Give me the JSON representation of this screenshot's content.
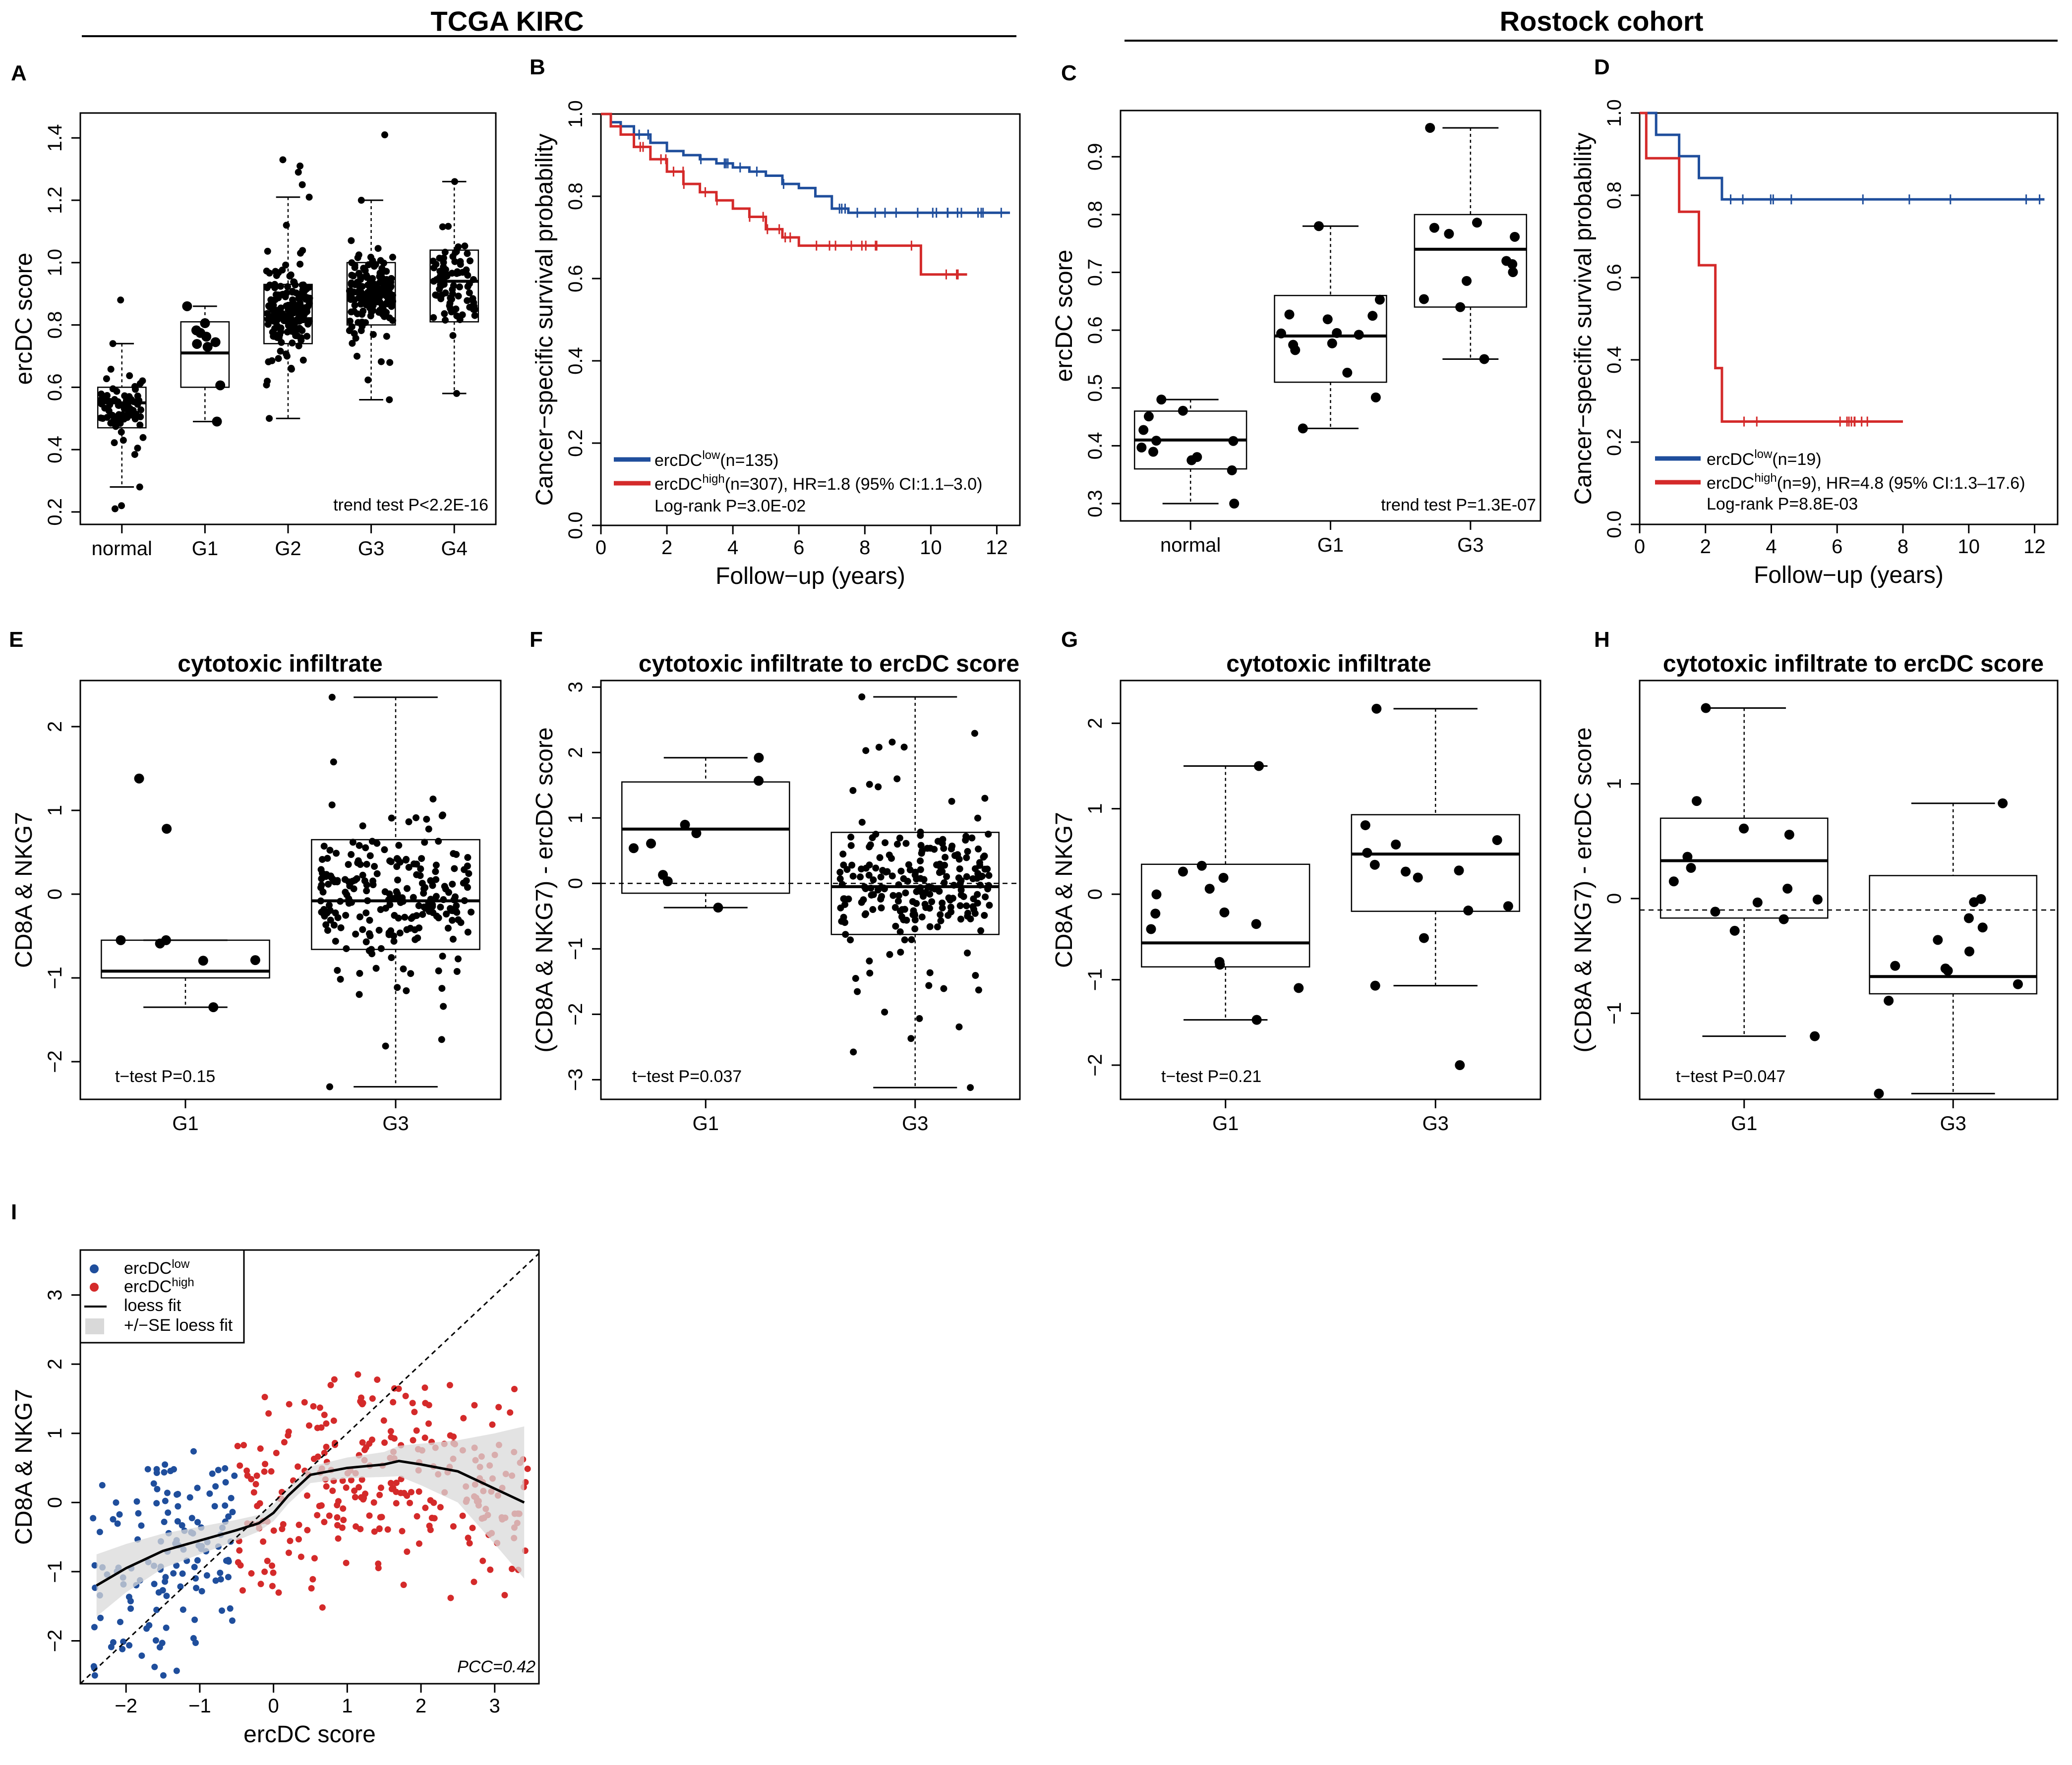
{
  "header": {
    "left_cohort": "TCGA  KIRC",
    "right_cohort": "Rostock cohort"
  },
  "colors": {
    "low": "#1f4e9c",
    "high": "#d42a2a",
    "band": "#d9d9d9"
  },
  "panels": {
    "A": {
      "label": "A",
      "annotation": "trend test P<2.2E-16"
    },
    "B": {
      "label": "B",
      "legend_low": "ercDC",
      "legend_low_sup": "low",
      "legend_low_n": "(n=135)",
      "legend_high": "ercDC",
      "legend_high_sup": "high",
      "legend_high_n": "(n=307), HR=1.8 (95% CI:1.1–3.0)",
      "logrank": "Log-rank  P=3.0E-02"
    },
    "C": {
      "label": "C",
      "annotation": "trend test P=1.3E-07"
    },
    "D": {
      "label": "D",
      "legend_low": "ercDC",
      "legend_low_sup": "low",
      "legend_low_n": "(n=19)",
      "legend_high": "ercDC",
      "legend_high_sup": "high",
      "legend_high_n": "(n=9), HR=4.8 (95% CI:1.3–17.6)",
      "logrank": "Log-rank P=8.8E-03"
    },
    "E": {
      "label": "E",
      "title": "cytotoxic infiltrate",
      "annotation": "t−test P=0.15"
    },
    "F": {
      "label": "F",
      "title": "cytotoxic infiltrate to ercDC score",
      "annotation": "t−test P=0.037"
    },
    "G": {
      "label": "G",
      "title": "cytotoxic infiltrate",
      "annotation": "t−test P=0.21"
    },
    "H": {
      "label": "H",
      "title": "cytotoxic infiltrate to ercDC score",
      "annotation": "t−test P=0.047"
    },
    "I": {
      "label": "I",
      "legend_low": "ercDC",
      "legend_low_sup": "low",
      "legend_high": "ercDC",
      "legend_high_sup": "high",
      "legend_fit": "loess fit",
      "legend_band": "+/−SE loess fit",
      "annotation": "PCC=0.42"
    }
  },
  "chart_data": [
    {
      "id": "A",
      "type": "box",
      "ylabel": "ercDC score",
      "xlabel": "",
      "ylim": [
        0.16,
        1.48
      ],
      "yticks": [
        0.2,
        0.4,
        0.6,
        0.8,
        1.0,
        1.2,
        1.4
      ],
      "ytick_labels": [
        "0.2",
        "0.4",
        "0.6",
        "0.8",
        "1.0",
        "1.2",
        "1.4"
      ],
      "categories": [
        "normal",
        "G1",
        "G2",
        "G3",
        "G4"
      ],
      "boxes": [
        {
          "q1": 0.47,
          "median": 0.55,
          "q3": 0.6,
          "lo": 0.28,
          "hi": 0.74,
          "n": 70,
          "outliers": [
            0.88,
            0.22,
            0.21
          ]
        },
        {
          "q1": 0.6,
          "median": 0.71,
          "q3": 0.81,
          "lo": 0.49,
          "hi": 0.86,
          "n": 10,
          "outliers": []
        },
        {
          "q1": 0.74,
          "median": 0.82,
          "q3": 0.93,
          "lo": 0.5,
          "hi": 1.21,
          "n": 170,
          "outliers": [
            1.33,
            1.31,
            1.29,
            1.25
          ]
        },
        {
          "q1": 0.8,
          "median": 0.9,
          "q3": 1.0,
          "lo": 0.56,
          "hi": 1.2,
          "n": 165,
          "outliers": [
            1.41
          ]
        },
        {
          "q1": 0.81,
          "median": 0.94,
          "q3": 1.04,
          "lo": 0.58,
          "hi": 1.26,
          "n": 80,
          "outliers": []
        }
      ]
    },
    {
      "id": "B",
      "type": "line",
      "ylabel": "Cancer−specific survival probability",
      "xlabel": "Follow−up (years)",
      "xlim": [
        0,
        12.7
      ],
      "ylim": [
        0,
        1.0
      ],
      "xticks": [
        0,
        2,
        4,
        6,
        8,
        10,
        12
      ],
      "xtick_labels": [
        "0",
        "2",
        "4",
        "6",
        "8",
        "10",
        "12"
      ],
      "yticks": [
        0.0,
        0.2,
        0.4,
        0.6,
        0.8,
        1.0
      ],
      "ytick_labels": [
        "0.0",
        "0.2",
        "0.4",
        "0.6",
        "0.8",
        "1.0"
      ],
      "series": [
        {
          "name": "ercDC low (n=135)",
          "color": "low",
          "x": [
            0,
            0.3,
            0.6,
            1.0,
            1.5,
            2.0,
            2.5,
            3.0,
            3.5,
            4.0,
            4.5,
            5.0,
            5.5,
            6.0,
            6.5,
            7.0,
            7.5,
            12.4
          ],
          "y": [
            1.0,
            0.98,
            0.97,
            0.95,
            0.93,
            0.91,
            0.9,
            0.89,
            0.88,
            0.87,
            0.86,
            0.85,
            0.83,
            0.82,
            0.8,
            0.77,
            0.76,
            0.76
          ]
        },
        {
          "name": "ercDC high (n=307)",
          "color": "high",
          "x": [
            0,
            0.3,
            0.6,
            1.0,
            1.5,
            2.0,
            2.5,
            3.0,
            3.5,
            4.0,
            4.5,
            5.0,
            5.5,
            6.0,
            7.0,
            8.0,
            9.0,
            9.7,
            11.1
          ],
          "y": [
            1.0,
            0.97,
            0.95,
            0.92,
            0.89,
            0.86,
            0.83,
            0.81,
            0.79,
            0.77,
            0.75,
            0.72,
            0.7,
            0.68,
            0.68,
            0.68,
            0.68,
            0.61,
            0.61
          ]
        }
      ]
    },
    {
      "id": "C",
      "type": "box",
      "ylabel": "ercDC score",
      "xlabel": "",
      "ylim": [
        0.27,
        0.98
      ],
      "yticks": [
        0.3,
        0.4,
        0.5,
        0.6,
        0.7,
        0.8,
        0.9
      ],
      "ytick_labels": [
        "0.3",
        "0.4",
        "0.5",
        "0.6",
        "0.7",
        "0.8",
        "0.9"
      ],
      "categories": [
        "normal",
        "G1",
        "G3"
      ],
      "boxes": [
        {
          "q1": 0.36,
          "median": 0.41,
          "q3": 0.46,
          "lo": 0.3,
          "hi": 0.48,
          "n": 12,
          "outliers": []
        },
        {
          "q1": 0.51,
          "median": 0.59,
          "q3": 0.66,
          "lo": 0.43,
          "hi": 0.78,
          "n": 14,
          "outliers": []
        },
        {
          "q1": 0.64,
          "median": 0.74,
          "q3": 0.8,
          "lo": 0.55,
          "hi": 0.95,
          "n": 12,
          "outliers": []
        }
      ]
    },
    {
      "id": "D",
      "type": "line",
      "ylabel": "Cancer−specific survival probability",
      "xlabel": "Follow−up (years)",
      "xlim": [
        0,
        12.7
      ],
      "ylim": [
        0,
        1.0
      ],
      "xticks": [
        0,
        2,
        4,
        6,
        8,
        10,
        12
      ],
      "xtick_labels": [
        "0",
        "2",
        "4",
        "6",
        "8",
        "10",
        "12"
      ],
      "yticks": [
        0.0,
        0.2,
        0.4,
        0.6,
        0.8,
        1.0
      ],
      "ytick_labels": [
        "0.0",
        "0.2",
        "0.4",
        "0.6",
        "0.8",
        "1.0"
      ],
      "series": [
        {
          "name": "ercDC low (n=19)",
          "color": "low",
          "x": [
            0,
            0.5,
            1.2,
            1.8,
            2.5,
            12.3
          ],
          "y": [
            1.0,
            0.947,
            0.895,
            0.842,
            0.79,
            0.79
          ]
        },
        {
          "name": "ercDC high (n=9)",
          "color": "high",
          "x": [
            0,
            0.2,
            1.2,
            1.8,
            2.3,
            2.5,
            8.0
          ],
          "y": [
            1.0,
            0.89,
            0.76,
            0.63,
            0.38,
            0.25,
            0.25
          ]
        }
      ]
    },
    {
      "id": "E",
      "type": "box",
      "title": "cytotoxic infiltrate",
      "ylabel": "CD8A & NKG7",
      "xlabel": "",
      "ylim": [
        -2.45,
        2.55
      ],
      "yticks": [
        -2,
        -1,
        0,
        1,
        2
      ],
      "ytick_labels": [
        "−2",
        "−1",
        "0",
        "1",
        "2"
      ],
      "categories": [
        "G1",
        "G3"
      ],
      "boxes": [
        {
          "q1": -1.0,
          "median": -0.92,
          "q3": -0.55,
          "lo": -1.35,
          "hi": -0.55,
          "n": 6,
          "outliers": [
            1.38,
            0.78
          ]
        },
        {
          "q1": -0.66,
          "median": -0.08,
          "q3": 0.65,
          "lo": -2.3,
          "hi": 2.35,
          "n": 230,
          "outliers": []
        }
      ]
    },
    {
      "id": "F",
      "type": "box",
      "title": "cytotoxic infiltrate to ercDC score",
      "ylabel": "(CD8A & NKG7) - ercDC score",
      "xlabel": "",
      "ylim": [
        -3.3,
        3.1
      ],
      "yticks": [
        -3,
        -2,
        -1,
        0,
        1,
        2,
        3
      ],
      "ytick_labels": [
        "−3",
        "−2",
        "−1",
        "0",
        "1",
        "2",
        "3"
      ],
      "reference_line": 0,
      "categories": [
        "G1",
        "G3"
      ],
      "boxes": [
        {
          "q1": -0.15,
          "median": 0.83,
          "q3": 1.55,
          "lo": -0.37,
          "hi": 1.92,
          "n": 9,
          "outliers": []
        },
        {
          "q1": -0.78,
          "median": -0.05,
          "q3": 0.78,
          "lo": -3.12,
          "hi": 2.85,
          "n": 230,
          "outliers": []
        }
      ]
    },
    {
      "id": "G",
      "type": "box",
      "title": "cytotoxic infiltrate",
      "ylabel": "CD8A & NKG7",
      "xlabel": "",
      "ylim": [
        -2.4,
        2.5
      ],
      "yticks": [
        -2,
        -1,
        0,
        1,
        2
      ],
      "ytick_labels": [
        "−2",
        "−1",
        "0",
        "1",
        "2"
      ],
      "categories": [
        "G1",
        "G3"
      ],
      "boxes": [
        {
          "q1": -0.85,
          "median": -0.57,
          "q3": 0.35,
          "lo": -1.47,
          "hi": 1.5,
          "n": 14,
          "outliers": []
        },
        {
          "q1": -0.2,
          "median": 0.47,
          "q3": 0.93,
          "lo": -1.07,
          "hi": 2.17,
          "n": 13,
          "outliers": [
            -2.0
          ]
        }
      ]
    },
    {
      "id": "H",
      "type": "box",
      "title": "cytotoxic infiltrate to ercDC score",
      "ylabel": "(CD8A & NKG7) - ercDC score",
      "xlabel": "",
      "ylim": [
        -1.75,
        1.9
      ],
      "yticks": [
        -1,
        0,
        1
      ],
      "ytick_labels": [
        "−1",
        "0",
        "1"
      ],
      "reference_line": -0.1,
      "categories": [
        "G1",
        "G3"
      ],
      "boxes": [
        {
          "q1": -0.17,
          "median": 0.33,
          "q3": 0.7,
          "lo": -1.2,
          "hi": 1.66,
          "n": 14,
          "outliers": []
        },
        {
          "q1": -0.83,
          "median": -0.68,
          "q3": 0.2,
          "lo": -1.7,
          "hi": 0.83,
          "n": 13,
          "outliers": []
        }
      ]
    },
    {
      "id": "I",
      "type": "scatter",
      "ylabel": "CD8A & NKG7",
      "xlabel": "ercDC score",
      "xlim": [
        -2.62,
        3.6
      ],
      "ylim": [
        -2.62,
        3.65
      ],
      "xticks": [
        -2,
        -1,
        0,
        1,
        2,
        3
      ],
      "xtick_labels": [
        "−2",
        "−1",
        "0",
        "1",
        "2",
        "3"
      ],
      "yticks": [
        -2,
        -1,
        0,
        1,
        2,
        3
      ],
      "ytick_labels": [
        "−2",
        "−1",
        "0",
        "1",
        "2",
        "3"
      ],
      "diagonal": [
        [
          -2.62,
          -2.62
        ],
        [
          3.6,
          3.6
        ]
      ],
      "groups": [
        {
          "name": "ercDC low",
          "color": "low",
          "x_range": [
            -2.45,
            -0.5
          ],
          "n": 140
        },
        {
          "name": "ercDC high",
          "color": "high",
          "x_range": [
            -0.5,
            3.45
          ],
          "n": 280
        }
      ],
      "loess_fit": {
        "x": [
          -2.4,
          -2.0,
          -1.5,
          -1.0,
          -0.5,
          -0.2,
          0.0,
          0.2,
          0.5,
          1.0,
          1.5,
          1.7,
          2.0,
          2.5,
          3.0,
          3.4
        ],
        "y": [
          -1.2,
          -0.95,
          -0.7,
          -0.55,
          -0.4,
          -0.3,
          -0.15,
          0.1,
          0.4,
          0.5,
          0.55,
          0.6,
          0.55,
          0.45,
          0.2,
          0.0
        ],
        "se": [
          0.45,
          0.35,
          0.25,
          0.2,
          0.15,
          0.12,
          0.12,
          0.12,
          0.12,
          0.15,
          0.18,
          0.22,
          0.3,
          0.45,
          0.8,
          1.1
        ]
      }
    }
  ]
}
